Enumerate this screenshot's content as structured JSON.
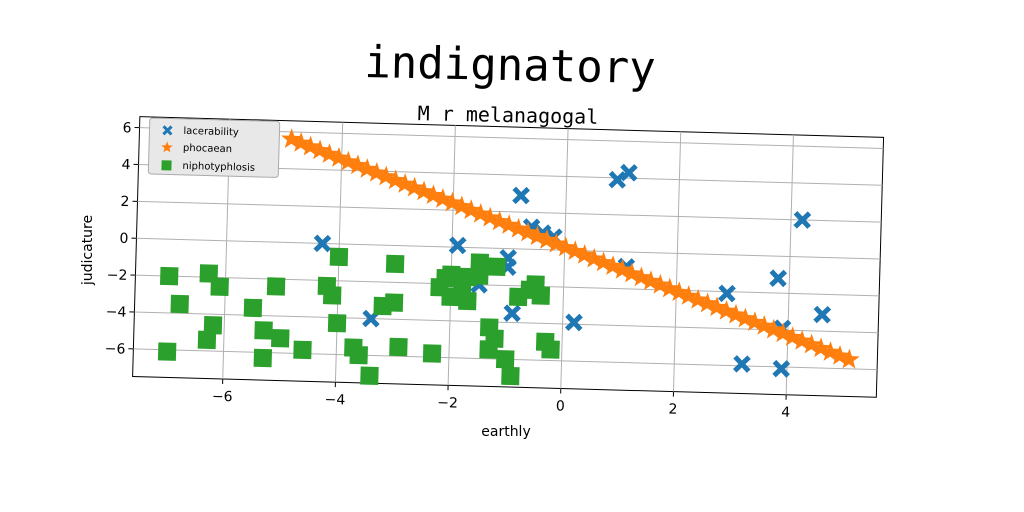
{
  "chart_data": {
    "type": "scatter",
    "title": "indignatory",
    "subtitle": "M r melanagogal",
    "xlabel": "earthly",
    "ylabel": "judicature",
    "xlim": [
      -7.6,
      5.6
    ],
    "ylim": [
      -7.5,
      6.6
    ],
    "xticks": [
      -6,
      -4,
      -2,
      0,
      2,
      4
    ],
    "yticks": [
      -6,
      -4,
      -2,
      0,
      2,
      4,
      6
    ],
    "xtick_labels": [
      "−6",
      "−4",
      "−2",
      "0",
      "2",
      "4"
    ],
    "ytick_labels": [
      "−6",
      "−4",
      "−2",
      "0",
      "2",
      "4",
      "6"
    ],
    "grid": true,
    "legend_position": "top-left",
    "series": [
      {
        "name": "lacerability",
        "marker": "x",
        "color": "#1f77b4",
        "points": [
          [
            -4.3,
            0.0
          ],
          [
            -3.4,
            -4.0
          ],
          [
            -1.9,
            0.1
          ],
          [
            -1.5,
            -2.0
          ],
          [
            -1.0,
            -0.5
          ],
          [
            -1.0,
            -1.0
          ],
          [
            -0.9,
            -3.5
          ],
          [
            -0.8,
            2.9
          ],
          [
            -0.6,
            1.2
          ],
          [
            -0.4,
            0.9
          ],
          [
            -0.2,
            0.7
          ],
          [
            0.2,
            -3.9
          ],
          [
            0.9,
            3.9
          ],
          [
            1.1,
            4.3
          ],
          [
            1.1,
            -0.8
          ],
          [
            2.9,
            -2.1
          ],
          [
            3.2,
            -5.9
          ],
          [
            3.8,
            -1.2
          ],
          [
            3.9,
            -3.9
          ],
          [
            3.9,
            -6.1
          ],
          [
            4.2,
            2.0
          ],
          [
            4.6,
            -3.1
          ]
        ]
      },
      {
        "name": "phocaean",
        "marker": "star",
        "color": "#ff7f0e",
        "line": {
          "from": [
            -4.9,
            5.6
          ],
          "to": [
            5.1,
            -5.5
          ],
          "count": 60
        }
      },
      {
        "name": "niphotyphlosis",
        "marker": "square",
        "color": "#2ca02c",
        "points": [
          [
            -7.0,
            -2.0
          ],
          [
            -6.8,
            -3.5
          ],
          [
            -7.0,
            -6.1
          ],
          [
            -6.3,
            -1.8
          ],
          [
            -6.1,
            -2.5
          ],
          [
            -6.2,
            -4.6
          ],
          [
            -6.3,
            -5.4
          ],
          [
            -5.5,
            -3.6
          ],
          [
            -5.3,
            -4.8
          ],
          [
            -5.3,
            -6.3
          ],
          [
            -5.1,
            -2.4
          ],
          [
            -5.0,
            -5.2
          ],
          [
            -4.6,
            -5.8
          ],
          [
            -4.0,
            -0.7
          ],
          [
            -4.2,
            -2.3
          ],
          [
            -4.1,
            -2.8
          ],
          [
            -4.0,
            -4.3
          ],
          [
            -3.7,
            -5.6
          ],
          [
            -3.6,
            -6.0
          ],
          [
            -3.4,
            -7.1
          ],
          [
            -3.2,
            -3.3
          ],
          [
            -3.0,
            -3.1
          ],
          [
            -3.0,
            -1.0
          ],
          [
            -2.9,
            -5.5
          ],
          [
            -2.3,
            -5.8
          ],
          [
            -2.2,
            -2.2
          ],
          [
            -2.1,
            -1.7
          ],
          [
            -2.0,
            -2.7
          ],
          [
            -2.0,
            -1.5
          ],
          [
            -1.8,
            -2.0
          ],
          [
            -1.7,
            -1.6
          ],
          [
            -1.7,
            -2.9
          ],
          [
            -1.5,
            -0.8
          ],
          [
            -1.5,
            -1.5
          ],
          [
            -1.3,
            -4.3
          ],
          [
            -1.3,
            -5.5
          ],
          [
            -1.2,
            -1.0
          ],
          [
            -1.2,
            -4.9
          ],
          [
            -1.0,
            -6.0
          ],
          [
            -0.9,
            -6.9
          ],
          [
            -0.8,
            -2.6
          ],
          [
            -0.6,
            -2.2
          ],
          [
            -0.5,
            -1.9
          ],
          [
            -0.4,
            -2.5
          ],
          [
            -0.3,
            -5.0
          ],
          [
            -0.2,
            -5.4
          ]
        ]
      }
    ]
  }
}
